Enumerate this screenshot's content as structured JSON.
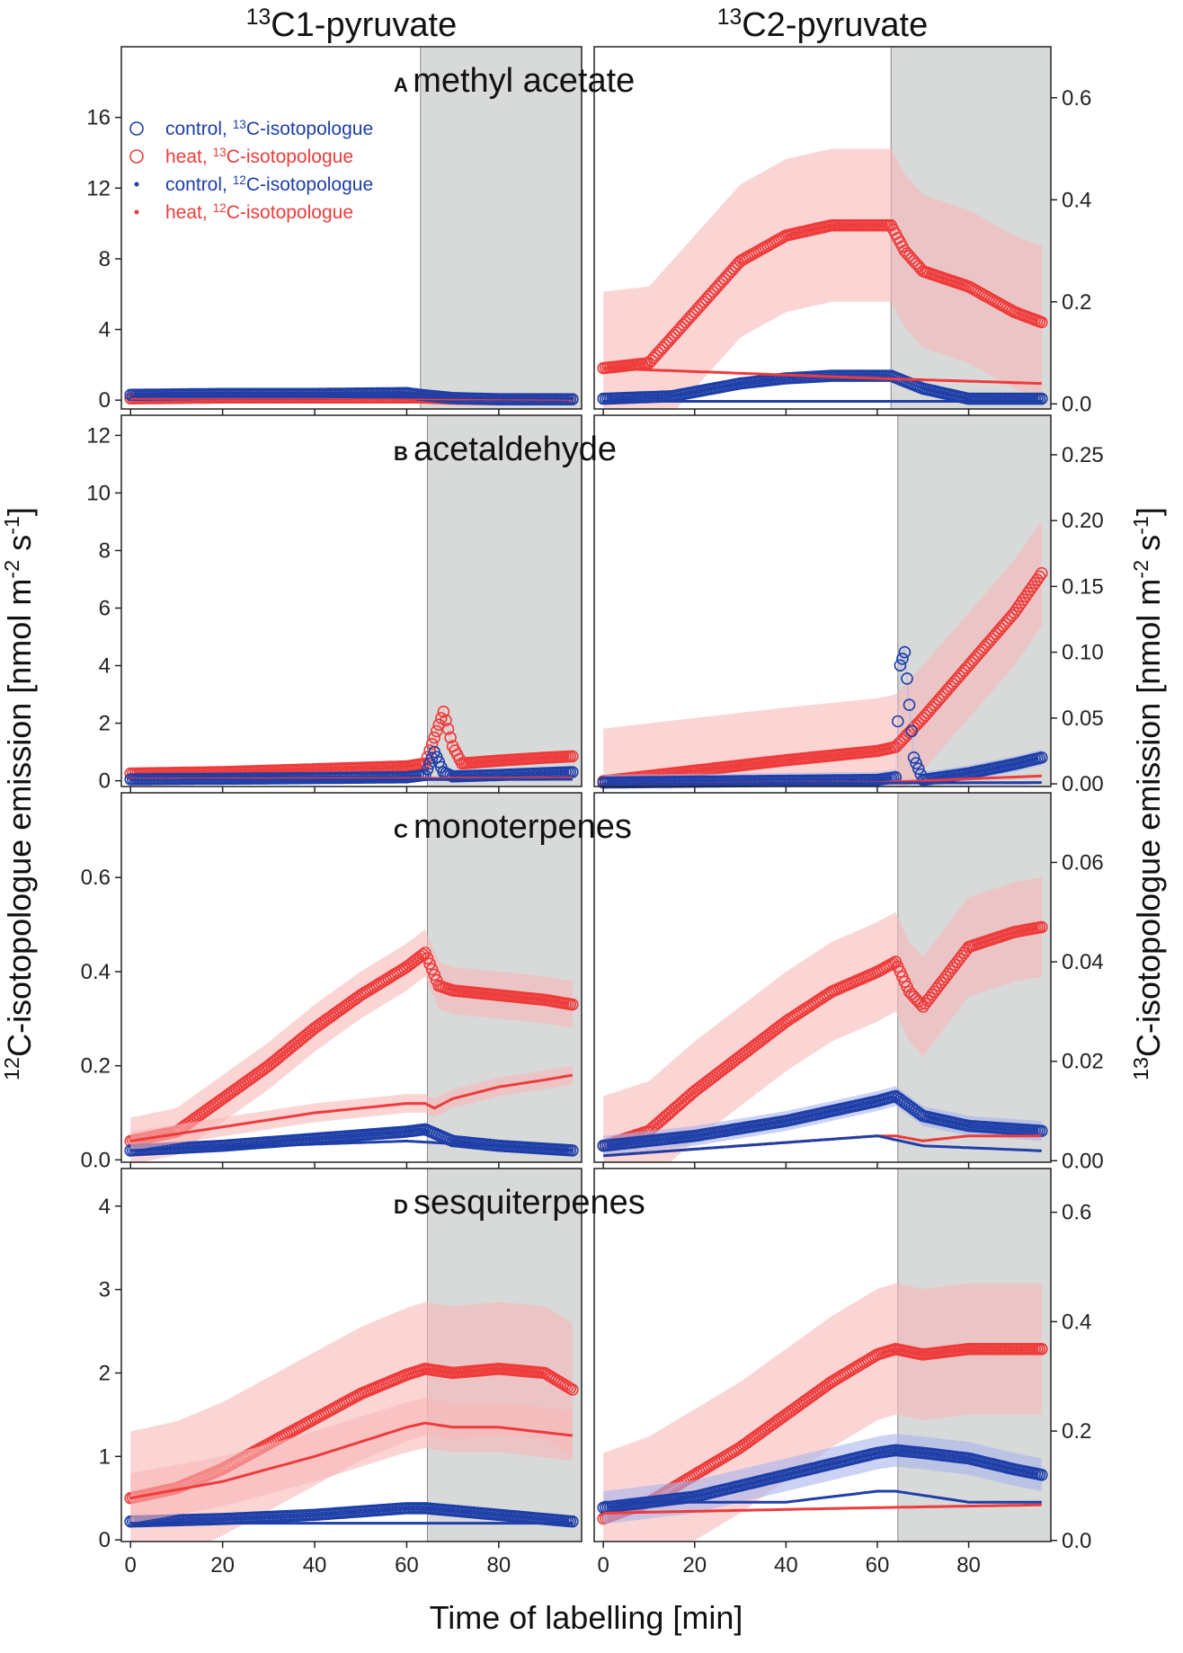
{
  "figure": {
    "col_titles": [
      {
        "main": "C1-pyruvate",
        "sup": "13"
      },
      {
        "main": "C2-pyruvate",
        "sup": "13"
      }
    ],
    "x_axis_title": "Time of labelling [min]",
    "y_left_title": {
      "sup": "12",
      "text": "C-isotopologue emission [nmol m",
      "sup2": "-2",
      "text2": " s",
      "sup3": "-1",
      "end": "]"
    },
    "y_right_title": {
      "sup": "13",
      "text": "C-isotopologue emission [nmol m",
      "sup2": "-2",
      "text2": " s",
      "sup3": "-1",
      "end": "]"
    },
    "colors": {
      "control": "#1f3fa8",
      "heat": "#ee3b3b",
      "heat_band": "#f8b8b8",
      "control_band": "#a9b4ec",
      "shade": "#d8d9d9"
    }
  },
  "legend": [
    {
      "symbol": "circle",
      "series": "control",
      "label": "control, ",
      "sup": "13",
      "tail": "C-isotopologue"
    },
    {
      "symbol": "circle",
      "series": "heat",
      "label": "heat, ",
      "sup": "13",
      "tail": "C-isotopologue"
    },
    {
      "symbol": "dot",
      "series": "control",
      "label": "control, ",
      "sup": "12",
      "tail": "C-isotopologue"
    },
    {
      "symbol": "dot",
      "series": "heat",
      "label": "heat, ",
      "sup": "12",
      "tail": "C-isotopologue"
    }
  ],
  "chart_data": [
    {
      "type": "scatter",
      "letter": "A",
      "title": "methyl acetate",
      "xlim": [
        -2,
        98
      ],
      "x_ticks": [
        0,
        20,
        40,
        60,
        80
      ],
      "left": {
        "dark_start": 63,
        "ylim_12C": [
          -0.5,
          20
        ],
        "y_ticks": [
          0,
          4,
          8,
          12,
          16
        ],
        "series": {
          "control_13C": {
            "x": [
              0,
              20,
              40,
              60,
              63,
              70,
              80,
              96
            ],
            "y": [
              0.3,
              0.35,
              0.35,
              0.4,
              0.3,
              0.12,
              0.05,
              0.05
            ]
          },
          "heat_13C": {
            "x": [
              0,
              20,
              40,
              60,
              63,
              70,
              80,
              96
            ],
            "y": [
              0.1,
              0.15,
              0.15,
              0.15,
              0.15,
              0.08,
              0.05,
              0.05
            ]
          },
          "control_12C": {
            "x": [
              0,
              40,
              96
            ],
            "y": [
              0.2,
              0.2,
              0.1
            ]
          },
          "heat_12C": {
            "x": [
              0,
              40,
              96
            ],
            "y": [
              0.1,
              0.1,
              0.05
            ]
          }
        }
      },
      "right": {
        "dark_start": 63,
        "ylim_13C": [
          -0.01,
          0.7
        ],
        "y_ticks": [
          0.0,
          0.2,
          0.4,
          0.6
        ],
        "series": {
          "heat_13C": {
            "x": [
              0,
              10,
              20,
              30,
              40,
              50,
              60,
              63,
              66,
              70,
              80,
              90,
              96
            ],
            "y": [
              0.07,
              0.08,
              0.18,
              0.28,
              0.33,
              0.35,
              0.35,
              0.35,
              0.3,
              0.26,
              0.23,
              0.18,
              0.16
            ],
            "band": 0.15
          },
          "control_13C": {
            "x": [
              0,
              15,
              30,
              40,
              50,
              60,
              63,
              70,
              80,
              96
            ],
            "y": [
              0.01,
              0.015,
              0.04,
              0.05,
              0.055,
              0.055,
              0.055,
              0.03,
              0.01,
              0.01
            ],
            "band": 0.01
          },
          "heat_12C": {
            "x": [
              0,
              30,
              60,
              96
            ],
            "y": [
              0.07,
              0.06,
              0.05,
              0.04
            ]
          },
          "control_12C": {
            "x": [
              0,
              60,
              96
            ],
            "y": [
              0.005,
              0.005,
              0.005
            ]
          }
        }
      }
    },
    {
      "type": "scatter",
      "letter": "B",
      "title": "acetaldehyde",
      "xlim": [
        -2,
        98
      ],
      "x_ticks": [
        0,
        20,
        40,
        60,
        80
      ],
      "left": {
        "dark_start": 64.5,
        "ylim_12C": [
          -0.2,
          12.7
        ],
        "y_ticks": [
          0,
          2,
          4,
          6,
          8,
          10,
          12
        ],
        "series": {
          "heat_13C": {
            "x": [
              0,
              20,
              40,
              60,
              64,
              66,
              68,
              70,
              72,
              80,
              90,
              96
            ],
            "y": [
              0.25,
              0.3,
              0.4,
              0.5,
              0.6,
              1.5,
              2.4,
              1.2,
              0.6,
              0.7,
              0.8,
              0.85
            ],
            "band": 0.2
          },
          "control_13C": {
            "x": [
              0,
              30,
              60,
              64,
              66,
              68,
              70,
              80,
              96
            ],
            "y": [
              0.05,
              0.08,
              0.12,
              0.2,
              1.0,
              0.3,
              0.15,
              0.2,
              0.3
            ]
          },
          "heat_12C": {
            "x": [
              0,
              96
            ],
            "y": [
              0.05,
              0.1
            ]
          },
          "control_12C": {
            "x": [
              0,
              96
            ],
            "y": [
              0.02,
              0.05
            ]
          }
        }
      },
      "right": {
        "dark_start": 64.5,
        "ylim_13C": [
          -0.002,
          0.28
        ],
        "y_ticks": [
          0.0,
          0.05,
          0.1,
          0.15,
          0.2,
          0.25
        ],
        "series": {
          "heat_13C": {
            "x": [
              0,
              20,
              40,
              60,
              64,
              70,
              80,
              90,
              96
            ],
            "y": [
              0.002,
              0.01,
              0.018,
              0.025,
              0.028,
              0.05,
              0.09,
              0.13,
              0.16
            ],
            "band": 0.04
          },
          "control_13C": {
            "x": [
              0,
              30,
              60,
              64,
              65,
              66,
              67,
              68,
              70,
              80,
              90,
              96
            ],
            "y": [
              0.001,
              0.002,
              0.003,
              0.005,
              0.09,
              0.1,
              0.06,
              0.02,
              0.003,
              0.008,
              0.015,
              0.02
            ],
            "band": 0.006
          },
          "heat_12C": {
            "x": [
              0,
              60,
              96
            ],
            "y": [
              0.0,
              0.001,
              0.006
            ]
          },
          "control_12C": {
            "x": [
              0,
              96
            ],
            "y": [
              0.0,
              0.001
            ]
          }
        }
      }
    },
    {
      "type": "scatter",
      "letter": "C",
      "title": "monoterpenes",
      "xlim": [
        -2,
        98
      ],
      "x_ticks": [
        0,
        20,
        40,
        60,
        80
      ],
      "left": {
        "dark_start": 64.5,
        "ylim_12C": [
          -0.005,
          0.78
        ],
        "y_ticks": [
          0.0,
          0.2,
          0.4,
          0.6
        ],
        "series": {
          "heat_13C": {
            "x": [
              0,
              10,
              20,
              30,
              40,
              50,
              60,
              64,
              67,
              70,
              80,
              90,
              96
            ],
            "y": [
              0.04,
              0.06,
              0.13,
              0.2,
              0.28,
              0.35,
              0.41,
              0.44,
              0.37,
              0.36,
              0.35,
              0.34,
              0.33
            ],
            "band": 0.05
          },
          "heat_12C": {
            "x": [
              0,
              20,
              40,
              60,
              64,
              66,
              70,
              80,
              90,
              96
            ],
            "y": [
              0.04,
              0.07,
              0.1,
              0.12,
              0.12,
              0.11,
              0.13,
              0.155,
              0.17,
              0.18
            ],
            "band": 0.02
          },
          "control_13C": {
            "x": [
              0,
              20,
              40,
              60,
              64,
              70,
              80,
              96
            ],
            "y": [
              0.02,
              0.03,
              0.045,
              0.06,
              0.065,
              0.04,
              0.03,
              0.02
            ],
            "band": 0.01
          },
          "control_12C": {
            "x": [
              0,
              60,
              96
            ],
            "y": [
              0.02,
              0.04,
              0.02
            ]
          }
        }
      },
      "right": {
        "dark_start": 64.5,
        "ylim_13C": [
          -0.0003,
          0.074
        ],
        "y_ticks": [
          0.0,
          0.02,
          0.04,
          0.06
        ],
        "series": {
          "heat_13C": {
            "x": [
              0,
              10,
              20,
              30,
              40,
              50,
              60,
              64,
              67,
              70,
              75,
              80,
              90,
              96
            ],
            "y": [
              0.003,
              0.006,
              0.014,
              0.021,
              0.028,
              0.034,
              0.038,
              0.04,
              0.034,
              0.031,
              0.037,
              0.043,
              0.046,
              0.047
            ],
            "band": 0.01
          },
          "control_13C": {
            "x": [
              0,
              20,
              40,
              60,
              64,
              70,
              80,
              96
            ],
            "y": [
              0.003,
              0.005,
              0.008,
              0.012,
              0.013,
              0.009,
              0.007,
              0.006
            ],
            "band": 0.002
          },
          "heat_12C": {
            "x": [
              0,
              30,
              60,
              64,
              70,
              80,
              96
            ],
            "y": [
              0.001,
              0.003,
              0.005,
              0.005,
              0.004,
              0.005,
              0.005
            ]
          },
          "control_12C": {
            "x": [
              0,
              60,
              70,
              96
            ],
            "y": [
              0.001,
              0.005,
              0.003,
              0.002
            ]
          }
        }
      }
    },
    {
      "type": "scatter",
      "letter": "D",
      "title": "sesquiterpenes",
      "xlim": [
        -2,
        98
      ],
      "x_ticks": [
        0,
        20,
        40,
        60,
        80
      ],
      "left": {
        "dark_start": 64.5,
        "ylim_12C": [
          -0.02,
          4.45
        ],
        "y_ticks": [
          0,
          1,
          2,
          3,
          4
        ],
        "series": {
          "heat_13C": {
            "x": [
              0,
              10,
              20,
              30,
              40,
              50,
              60,
              64,
              70,
              80,
              90,
              96
            ],
            "y": [
              0.5,
              0.62,
              0.85,
              1.15,
              1.45,
              1.75,
              1.98,
              2.05,
              2.0,
              2.05,
              2.0,
              1.8
            ],
            "band": 0.8
          },
          "heat_12C": {
            "x": [
              0,
              20,
              40,
              60,
              64,
              70,
              80,
              96
            ],
            "y": [
              0.5,
              0.7,
              1.0,
              1.35,
              1.4,
              1.35,
              1.35,
              1.25
            ],
            "band": 0.3
          },
          "control_13C": {
            "x": [
              0,
              20,
              40,
              60,
              64,
              80,
              96
            ],
            "y": [
              0.22,
              0.25,
              0.3,
              0.38,
              0.38,
              0.3,
              0.22
            ]
          },
          "control_12C": {
            "x": [
              0,
              96
            ],
            "y": [
              0.2,
              0.2
            ]
          }
        }
      },
      "right": {
        "dark_start": 64.5,
        "ylim_13C": [
          -0.002,
          0.68
        ],
        "y_ticks": [
          0.0,
          0.2,
          0.4,
          0.6
        ],
        "series": {
          "heat_13C": {
            "x": [
              0,
              10,
              20,
              30,
              40,
              50,
              60,
              64,
              70,
              80,
              90,
              96
            ],
            "y": [
              0.04,
              0.07,
              0.12,
              0.17,
              0.23,
              0.29,
              0.34,
              0.35,
              0.34,
              0.35,
              0.35,
              0.35
            ],
            "band": 0.12
          },
          "control_13C": {
            "x": [
              0,
              10,
              20,
              30,
              40,
              50,
              60,
              64,
              70,
              80,
              90,
              96
            ],
            "y": [
              0.06,
              0.07,
              0.08,
              0.1,
              0.12,
              0.14,
              0.16,
              0.165,
              0.16,
              0.15,
              0.13,
              0.12
            ],
            "band": 0.03
          },
          "control_12C": {
            "x": [
              0,
              40,
              60,
              64,
              80,
              96
            ],
            "y": [
              0.07,
              0.07,
              0.09,
              0.09,
              0.07,
              0.07
            ]
          },
          "heat_12C": {
            "x": [
              0,
              60,
              96
            ],
            "y": [
              0.05,
              0.06,
              0.065
            ]
          }
        }
      }
    }
  ]
}
